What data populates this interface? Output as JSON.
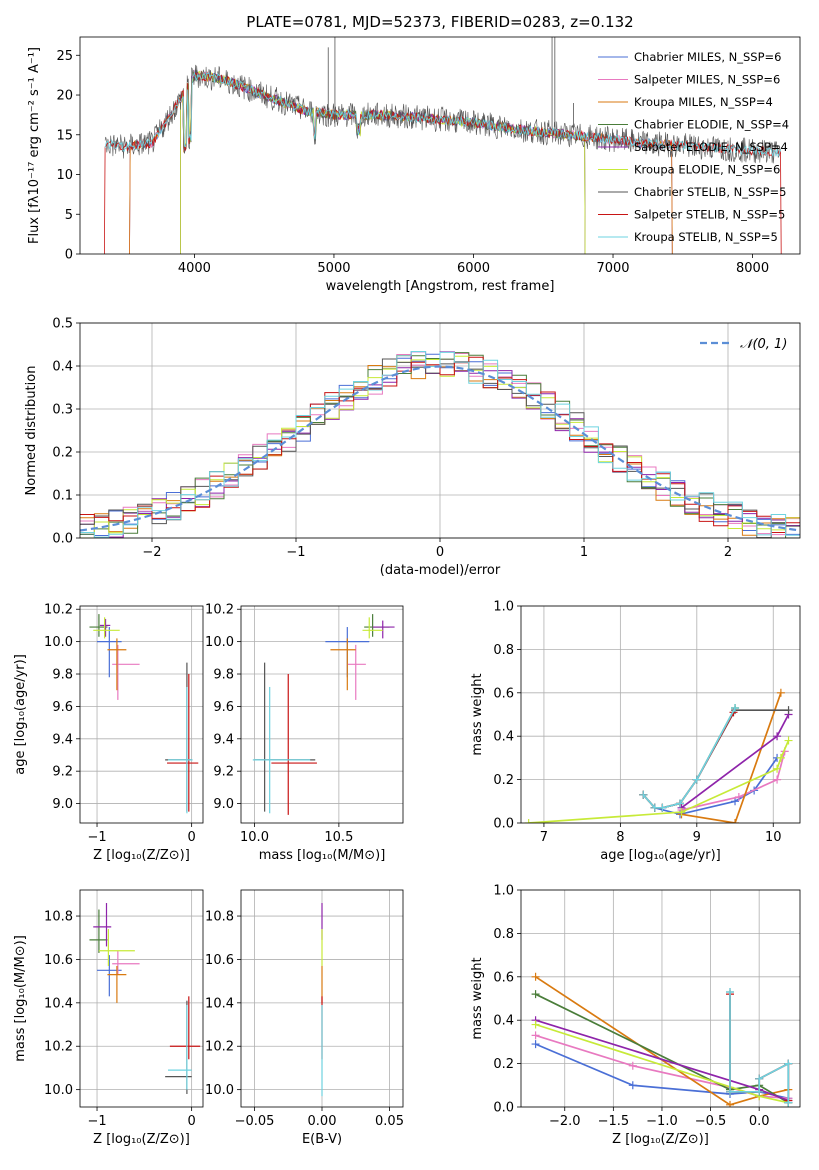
{
  "colors": {
    "Chabrier MILES": "#4a6fd6",
    "Salpeter MILES": "#e879c0",
    "Kroupa MILES": "#d97a10",
    "Chabrier ELODIE": "#4a7d3a",
    "Salpeter ELODIE": "#8e24aa",
    "Kroupa ELODIE": "#c7ea38",
    "Chabrier STELIB": "#555555",
    "Salpeter STELIB": "#c81414",
    "Kroupa STELIB": "#6ed3e0",
    "normal": "#5b8ed6"
  },
  "chart_data": [
    {
      "id": "spectrum",
      "type": "line",
      "title": "PLATE=0781, MJD=52373, FIBERID=0283, z=0.132",
      "xlabel": "wavelength [Angstrom, rest frame]",
      "ylabel": "Flux [fλ10⁻¹⁷ erg cm⁻² s⁻¹ A⁻¹]",
      "xlim": [
        3180,
        8340
      ],
      "ylim": [
        0,
        27.3
      ],
      "xticks": [
        4000,
        5000,
        6000,
        7000,
        8000
      ],
      "yticks": [
        0,
        5,
        10,
        15,
        20,
        25
      ],
      "legend_position": "right",
      "continuum": {
        "x": [
          3360,
          3500,
          3700,
          3900,
          4000,
          4200,
          4500,
          4800,
          5000,
          5300,
          5600,
          6000,
          6400,
          6800,
          7200,
          7600,
          8000,
          8200
        ],
        "y": [
          13.8,
          13.5,
          14.0,
          19.5,
          22.5,
          22.0,
          20.0,
          18.0,
          17.5,
          17.5,
          17.2,
          16.5,
          15.5,
          14.8,
          14.0,
          13.5,
          13.0,
          12.8
        ]
      },
      "series": [
        {
          "name": "Chabrier MILES, N_SSP=6",
          "start": 3540,
          "end": 7420
        },
        {
          "name": "Salpeter MILES, N_SSP=6",
          "start": 3540,
          "end": 7420
        },
        {
          "name": "Kroupa MILES, N_SSP=4",
          "start": 3540,
          "end": 7420
        },
        {
          "name": "Chabrier ELODIE, N_SSP=4",
          "start": 3900,
          "end": 6800
        },
        {
          "name": "Salpeter ELODIE, N_SSP=4",
          "start": 3900,
          "end": 6800
        },
        {
          "name": "Kroupa ELODIE, N_SSP=6",
          "start": 3900,
          "end": 6800
        },
        {
          "name": "Chabrier STELIB, N_SSP=5",
          "start": 3360,
          "end": 8200
        },
        {
          "name": "Salpeter STELIB, N_SSP=5",
          "start": 3360,
          "end": 8200
        },
        {
          "name": "Kroupa STELIB, N_SSP=5",
          "start": 3360,
          "end": 8200
        }
      ]
    },
    {
      "id": "residuals",
      "type": "line",
      "xlabel": "(data-model)/error",
      "ylabel": "Normed distribution",
      "xlim": [
        -2.5,
        2.5
      ],
      "ylim": [
        0,
        0.5
      ],
      "xticks": [
        -2,
        -1,
        0,
        1,
        2
      ],
      "yticks": [
        0.0,
        0.1,
        0.2,
        0.3,
        0.4,
        0.5
      ],
      "grid": true,
      "legend": "𝒩(0, 1)",
      "legend_position": "top-right",
      "bin_width": 0.1,
      "series_note": "step histograms for nine model fits"
    },
    {
      "id": "age_vs_Z",
      "type": "scatter",
      "xlabel": "Z [log₁₀(Z/Z⊙)]",
      "ylabel": "age  [log₁₀(age/yr)]",
      "xlim": [
        -1.18,
        0.12
      ],
      "ylim": [
        8.88,
        10.22
      ],
      "xticks": [
        -1,
        0
      ],
      "yticks": [
        9.0,
        9.2,
        9.4,
        9.6,
        9.8,
        10.0,
        10.2
      ],
      "grid": true,
      "points": [
        {
          "model": "Chabrier MILES",
          "x": -0.87,
          "y": 10.0,
          "xerr": [
            0.13,
            0.13
          ],
          "yerr": [
            0.22,
            0.09
          ]
        },
        {
          "model": "Salpeter MILES",
          "x": -0.78,
          "y": 9.86,
          "xerr": [
            0.06,
            0.23
          ],
          "yerr": [
            0.22,
            0.12
          ]
        },
        {
          "model": "Kroupa MILES",
          "x": -0.79,
          "y": 9.95,
          "xerr": [
            0.1,
            0.1
          ],
          "yerr": [
            0.25,
            0.07
          ]
        },
        {
          "model": "Chabrier ELODIE",
          "x": -0.98,
          "y": 10.09,
          "xerr": [
            0.1,
            0.09
          ],
          "yerr": [
            0.06,
            0.08
          ]
        },
        {
          "model": "Salpeter ELODIE",
          "x": -0.91,
          "y": 10.1,
          "xerr": [
            0.06,
            0.05
          ],
          "yerr": [
            0.07,
            0.04
          ]
        },
        {
          "model": "Kroupa ELODIE",
          "x": -0.92,
          "y": 10.07,
          "xerr": [
            0.12,
            0.16
          ],
          "yerr": [
            0.05,
            0.08
          ]
        },
        {
          "model": "Chabrier STELIB",
          "x": -0.05,
          "y": 9.27,
          "xerr": [
            0.23,
            0.05
          ],
          "yerr": [
            0.32,
            0.6
          ]
        },
        {
          "model": "Salpeter STELIB",
          "x": -0.03,
          "y": 9.25,
          "xerr": [
            0.23,
            0.1
          ],
          "yerr": [
            0.3,
            0.55
          ]
        },
        {
          "model": "Kroupa STELIB",
          "x": -0.05,
          "y": 9.27,
          "xerr": [
            0.2,
            0.06
          ],
          "yerr": [
            0.33,
            0.45
          ]
        }
      ]
    },
    {
      "id": "age_vs_mass",
      "type": "scatter",
      "xlabel": "mass [log₁₀(M/M⊙)]",
      "xlim": [
        9.92,
        10.88
      ],
      "ylim": [
        8.88,
        10.22
      ],
      "xticks": [
        10.0,
        10.5
      ],
      "yticks": [
        9.0,
        9.2,
        9.4,
        9.6,
        9.8,
        10.0,
        10.2
      ],
      "grid": true,
      "points": [
        {
          "model": "Chabrier MILES",
          "x": 10.55,
          "y": 10.0,
          "xerr": [
            0.13,
            0.13
          ],
          "yerr": [
            0.22,
            0.09
          ]
        },
        {
          "model": "Salpeter MILES",
          "x": 10.6,
          "y": 9.86,
          "xerr": [
            0.05,
            0.06
          ],
          "yerr": [
            0.22,
            0.12
          ]
        },
        {
          "model": "Kroupa MILES",
          "x": 10.55,
          "y": 9.95,
          "xerr": [
            0.1,
            0.05
          ],
          "yerr": [
            0.25,
            0.07
          ]
        },
        {
          "model": "Chabrier ELODIE",
          "x": 10.7,
          "y": 10.09,
          "xerr": [
            0.05,
            0.1
          ],
          "yerr": [
            0.06,
            0.08
          ]
        },
        {
          "model": "Salpeter ELODIE",
          "x": 10.76,
          "y": 10.09,
          "xerr": [
            0.06,
            0.07
          ],
          "yerr": [
            0.07,
            0.04
          ]
        },
        {
          "model": "Kroupa ELODIE",
          "x": 10.68,
          "y": 10.07,
          "xerr": [
            0.04,
            0.08
          ],
          "yerr": [
            0.05,
            0.08
          ]
        },
        {
          "model": "Chabrier STELIB",
          "x": 10.06,
          "y": 9.27,
          "xerr": [
            0.06,
            0.3
          ],
          "yerr": [
            0.32,
            0.6
          ]
        },
        {
          "model": "Salpeter STELIB",
          "x": 10.2,
          "y": 9.25,
          "xerr": [
            0.1,
            0.17
          ],
          "yerr": [
            0.32,
            0.55
          ]
        },
        {
          "model": "Kroupa STELIB",
          "x": 10.09,
          "y": 9.27,
          "xerr": [
            0.1,
            0.24
          ],
          "yerr": [
            0.33,
            0.45
          ]
        }
      ]
    },
    {
      "id": "mass_weight_vs_age",
      "type": "line",
      "xlabel": "age  [log₁₀(age/yr)]",
      "ylabel": "mass weight",
      "xlim": [
        6.7,
        10.35
      ],
      "ylim": [
        0,
        1.0
      ],
      "xticks": [
        7,
        8,
        9,
        10
      ],
      "yticks": [
        0.0,
        0.2,
        0.4,
        0.6,
        0.8,
        1.0
      ],
      "grid": true,
      "series": [
        {
          "model": "Chabrier MILES",
          "x": [
            8.45,
            8.78,
            9.5,
            9.75,
            10.05
          ],
          "y": [
            0.07,
            0.04,
            0.1,
            0.15,
            0.3
          ]
        },
        {
          "model": "Salpeter MILES",
          "x": [
            8.8,
            9.55,
            10.05,
            10.15
          ],
          "y": [
            0.06,
            0.12,
            0.2,
            0.33
          ]
        },
        {
          "model": "Kroupa MILES",
          "x": [
            8.8,
            9.5,
            10.1
          ],
          "y": [
            0.04,
            0.0,
            0.6
          ]
        },
        {
          "model": "Chabrier ELODIE",
          "x": [
            8.3,
            8.45,
            8.55,
            8.78,
            9.0,
            9.5,
            9.5
          ],
          "y": [
            0.13,
            0.07,
            0.07,
            0.09,
            0.2,
            0.53,
            0.53
          ]
        },
        {
          "model": "Salpeter ELODIE",
          "x": [
            8.8,
            10.05,
            10.2
          ],
          "y": [
            0.07,
            0.4,
            0.5
          ]
        },
        {
          "model": "Kroupa ELODIE",
          "x": [
            6.8,
            8.8,
            10.05,
            10.1,
            10.2
          ],
          "y": [
            0.0,
            0.05,
            0.25,
            0.3,
            0.38
          ]
        },
        {
          "model": "Chabrier STELIB",
          "x": [
            8.3,
            8.45,
            8.55,
            8.78,
            9.0,
            9.5,
            10.2
          ],
          "y": [
            0.13,
            0.07,
            0.07,
            0.09,
            0.2,
            0.52,
            0.52
          ]
        },
        {
          "model": "Salpeter STELIB",
          "x": [
            8.3,
            8.45,
            8.55,
            8.78,
            9.0,
            9.48
          ],
          "y": [
            0.13,
            0.07,
            0.07,
            0.09,
            0.2,
            0.51
          ]
        },
        {
          "model": "Kroupa STELIB",
          "x": [
            8.3,
            8.45,
            8.55,
            8.78,
            9.0,
            9.5
          ],
          "y": [
            0.13,
            0.07,
            0.07,
            0.09,
            0.2,
            0.53
          ]
        }
      ]
    },
    {
      "id": "mass_vs_Z",
      "type": "scatter",
      "xlabel": "Z [log₁₀(Z/Z⊙)]",
      "ylabel": "mass [log₁₀(M/M⊙)]",
      "xlim": [
        -1.18,
        0.12
      ],
      "ylim": [
        9.92,
        10.92
      ],
      "xticks": [
        -1,
        0
      ],
      "yticks": [
        10.0,
        10.2,
        10.4,
        10.6,
        10.8
      ],
      "grid": true,
      "points": [
        {
          "model": "Chabrier MILES",
          "x": -0.87,
          "y": 10.55,
          "xerr": [
            0.13,
            0.13
          ],
          "yerr": [
            0.12,
            0.07
          ]
        },
        {
          "model": "Salpeter MILES",
          "x": -0.78,
          "y": 10.58,
          "xerr": [
            0.06,
            0.23
          ],
          "yerr": [
            0.05,
            0.06
          ]
        },
        {
          "model": "Kroupa MILES",
          "x": -0.79,
          "y": 10.53,
          "xerr": [
            0.1,
            0.1
          ],
          "yerr": [
            0.13,
            0.04
          ]
        },
        {
          "model": "Chabrier ELODIE",
          "x": -0.98,
          "y": 10.69,
          "xerr": [
            0.1,
            0.09
          ],
          "yerr": [
            0.06,
            0.14
          ]
        },
        {
          "model": "Salpeter ELODIE",
          "x": -0.9,
          "y": 10.75,
          "xerr": [
            0.14,
            0.05
          ],
          "yerr": [
            0.09,
            0.11
          ]
        },
        {
          "model": "Kroupa ELODIE",
          "x": -0.88,
          "y": 10.64,
          "xerr": [
            0.1,
            0.28
          ],
          "yerr": [
            0.07,
            0.1
          ]
        },
        {
          "model": "Chabrier STELIB",
          "x": -0.05,
          "y": 10.06,
          "xerr": [
            0.23,
            0.05
          ],
          "yerr": [
            0.08,
            0.35
          ]
        },
        {
          "model": "Salpeter STELIB",
          "x": -0.03,
          "y": 10.2,
          "xerr": [
            0.2,
            0.12
          ],
          "yerr": [
            0.06,
            0.23
          ]
        },
        {
          "model": "Kroupa STELIB",
          "x": -0.05,
          "y": 10.09,
          "xerr": [
            0.2,
            0.05
          ],
          "yerr": [
            0.09,
            0.3
          ]
        }
      ]
    },
    {
      "id": "mass_vs_EBV",
      "type": "scatter",
      "xlabel": "E(B-V)",
      "xlim": [
        -0.06,
        0.06
      ],
      "ylim": [
        9.92,
        10.92
      ],
      "xticks": [
        -0.05,
        0.0,
        0.05
      ],
      "yticks": [
        10.0,
        10.2,
        10.4,
        10.6,
        10.8
      ],
      "grid": true,
      "points": [
        {
          "model": "Salpeter ELODIE",
          "x": 0.0,
          "y": 10.75,
          "yerr": [
            0.06,
            0.11
          ]
        },
        {
          "model": "Kroupa ELODIE",
          "x": 0.0,
          "y": 10.64,
          "yerr": [
            0.07,
            0.1
          ]
        },
        {
          "model": "Kroupa MILES",
          "x": 0.0,
          "y": 10.53,
          "yerr": [
            0.13,
            0.04
          ]
        },
        {
          "model": "Salpeter STELIB",
          "x": 0.0,
          "y": 10.2,
          "yerr": [
            0.06,
            0.23
          ]
        },
        {
          "model": "Kroupa STELIB",
          "x": 0.0,
          "y": 10.09,
          "yerr": [
            0.12,
            0.3
          ]
        }
      ]
    },
    {
      "id": "mass_weight_vs_Z",
      "type": "line",
      "xlabel": "Z [log₁₀(Z/Z⊙)]",
      "ylabel": "mass weight",
      "xlim": [
        -2.45,
        0.42
      ],
      "ylim": [
        0,
        1.0
      ],
      "xticks": [
        -2.0,
        -1.5,
        -1.0,
        -0.5,
        0.0
      ],
      "yticks": [
        0.0,
        0.2,
        0.4,
        0.6,
        0.8,
        1.0
      ],
      "grid": true,
      "series": [
        {
          "model": "Chabrier MILES",
          "x": [
            -2.3,
            -1.3,
            -0.3,
            0.0,
            0.3
          ],
          "y": [
            0.29,
            0.1,
            0.06,
            0.07,
            0.04
          ]
        },
        {
          "model": "Salpeter MILES",
          "x": [
            -2.3,
            -1.3,
            -0.3,
            0.0,
            0.3
          ],
          "y": [
            0.33,
            0.19,
            0.09,
            0.05,
            0.04
          ]
        },
        {
          "model": "Kroupa MILES",
          "x": [
            -2.3,
            -0.3,
            0.0,
            0.3
          ],
          "y": [
            0.6,
            0.01,
            0.05,
            0.08
          ]
        },
        {
          "model": "Chabrier ELODIE",
          "x": [
            -2.3,
            -0.3,
            0.0,
            0.3
          ],
          "y": [
            0.52,
            0.08,
            0.1,
            0.02
          ]
        },
        {
          "model": "Salpeter ELODIE",
          "x": [
            -2.3,
            0.0,
            0.3
          ],
          "y": [
            0.4,
            0.08,
            0.03
          ]
        },
        {
          "model": "Kroupa ELODIE",
          "x": [
            -2.3,
            0.0,
            0.3
          ],
          "y": [
            0.38,
            0.05,
            0.02
          ]
        },
        {
          "model": "Chabrier STELIB",
          "x": [
            -0.3,
            -0.3,
            0.0,
            0.0,
            0.3,
            0.3
          ],
          "y": [
            0.53,
            0.07,
            0.07,
            0.13,
            0.2,
            0.02
          ]
        },
        {
          "model": "Salpeter STELIB",
          "x": [
            -0.3,
            -0.3,
            0.0,
            0.0,
            0.3,
            0.3
          ],
          "y": [
            0.52,
            0.07,
            0.07,
            0.13,
            0.2,
            0.03
          ]
        },
        {
          "model": "Kroupa STELIB",
          "x": [
            -0.3,
            -0.3,
            0.0,
            0.0,
            0.3,
            0.3
          ],
          "y": [
            0.53,
            0.07,
            0.07,
            0.13,
            0.2,
            0.02
          ]
        }
      ]
    }
  ]
}
